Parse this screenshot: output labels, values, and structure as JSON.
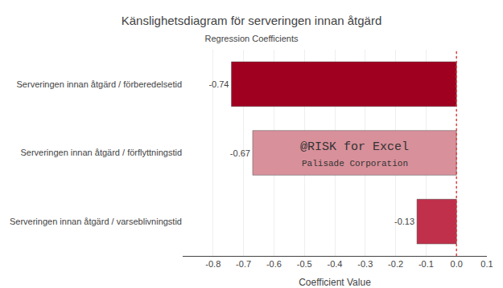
{
  "chart_data": {
    "type": "bar",
    "orientation": "horizontal",
    "title": "Känslighetsdiagram för serveringen innan åtgärd",
    "subtitle": "Regression Coefficients",
    "xlabel": "Coefficient Value",
    "categories": [
      "Serveringen innan åtgärd / varseblivningstid",
      "Serveringen innan åtgärd / förflyttningstid",
      "Serveringen innan åtgärd / förberedelsetid"
    ],
    "values": [
      -0.13,
      -0.67,
      -0.74
    ],
    "colors": [
      "#c0304a",
      "#d8909a",
      "#a00020"
    ],
    "data_labels": true,
    "xlim": [
      -0.9,
      0.1
    ],
    "xticks": [
      -0.8,
      -0.7,
      -0.6,
      -0.5,
      -0.4,
      -0.3,
      -0.2,
      -0.1,
      {
        "value": 0.0,
        "label": "0.0"
      },
      0.1
    ],
    "grid": true,
    "vline": {
      "value": 0.0,
      "color": "#dd4444"
    },
    "annotations": [
      "@RISK for Excel",
      "Palisade Corporation"
    ]
  }
}
